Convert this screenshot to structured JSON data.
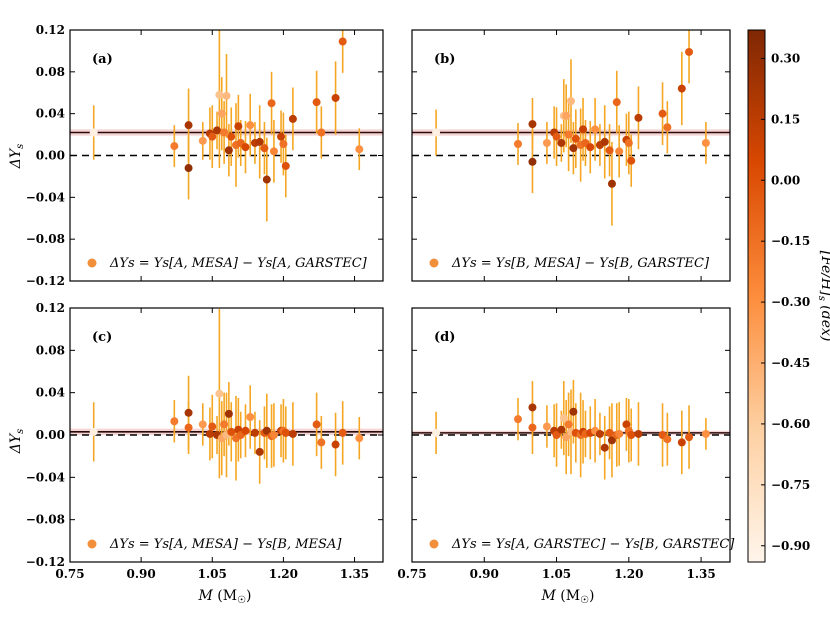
{
  "chart_data": {
    "type": "scatter",
    "x_ticks": [
      0.75,
      0.9,
      1.05,
      1.2,
      1.35
    ],
    "x_tick_labels": [
      "0.75",
      "0.90",
      "1.05",
      "1.20",
      "1.35"
    ],
    "y_ticks": [
      -0.12,
      -0.08,
      -0.04,
      0.0,
      0.04,
      0.08,
      0.12
    ],
    "y_tick_labels": [
      "−0.12",
      "−0.08",
      "−0.04",
      "0.00",
      "0.04",
      "0.08",
      "0.12"
    ],
    "xlim": [
      0.75,
      1.41
    ],
    "ylim": [
      -0.12,
      0.12
    ],
    "xlabel": "M (M☉)",
    "ylabel": "ΔYs",
    "colorbar": {
      "label": "[Fe/H]s (dex)",
      "range": [
        -0.94,
        0.37
      ],
      "ticks": [
        0.3,
        0.15,
        0.0,
        -0.15,
        -0.3,
        -0.45,
        -0.6,
        -0.75,
        -0.9
      ],
      "tick_labels": [
        "0.30",
        "0.15",
        "0.00",
        "−0.15",
        "−0.30",
        "−0.45",
        "−0.60",
        "−0.75",
        "−0.90"
      ],
      "colors": [
        "#fff5eb",
        "#fdd0a2",
        "#fd8d3c",
        "#d94801",
        "#7f2704"
      ]
    },
    "panels": [
      {
        "label": "(a)",
        "legend": "ΔYs = Ys[A, MESA] − Ys[A, GARSTEC]",
        "mean": 0.022,
        "band": 0.003,
        "line_color": "#2a0a0a",
        "points": [
          {
            "x": 0.8,
            "y": 0.022,
            "err": 0.026,
            "feh": -0.9
          },
          {
            "x": 0.97,
            "y": 0.009,
            "err": 0.02,
            "feh": -0.2
          },
          {
            "x": 1.0,
            "y": 0.029,
            "err": 0.035,
            "feh": 0.22
          },
          {
            "x": 1.0,
            "y": -0.012,
            "err": 0.03,
            "feh": 0.3
          },
          {
            "x": 1.03,
            "y": 0.014,
            "err": 0.018,
            "feh": -0.35
          },
          {
            "x": 1.045,
            "y": 0.021,
            "err": 0.025,
            "feh": 0.15
          },
          {
            "x": 1.05,
            "y": 0.018,
            "err": 0.03,
            "feh": -0.05
          },
          {
            "x": 1.06,
            "y": 0.024,
            "err": 0.018,
            "feh": 0.2
          },
          {
            "x": 1.065,
            "y": 0.058,
            "err": 0.07,
            "feh": -0.55
          },
          {
            "x": 1.07,
            "y": 0.04,
            "err": 0.035,
            "feh": -0.4
          },
          {
            "x": 1.075,
            "y": 0.022,
            "err": 0.03,
            "feh": -0.2
          },
          {
            "x": 1.08,
            "y": 0.057,
            "err": 0.04,
            "feh": -0.5
          },
          {
            "x": 1.085,
            "y": 0.005,
            "err": 0.025,
            "feh": 0.25
          },
          {
            "x": 1.09,
            "y": 0.018,
            "err": 0.028,
            "feh": 0.0
          },
          {
            "x": 1.1,
            "y": 0.01,
            "err": 0.04,
            "feh": -0.15
          },
          {
            "x": 1.105,
            "y": 0.028,
            "err": 0.03,
            "feh": 0.1
          },
          {
            "x": 1.11,
            "y": 0.012,
            "err": 0.022,
            "feh": -0.1
          },
          {
            "x": 1.12,
            "y": 0.008,
            "err": 0.025,
            "feh": 0.05
          },
          {
            "x": 1.13,
            "y": 0.029,
            "err": 0.03,
            "feh": -0.3
          },
          {
            "x": 1.14,
            "y": 0.012,
            "err": 0.02,
            "feh": 0.15
          },
          {
            "x": 1.15,
            "y": 0.013,
            "err": 0.035,
            "feh": 0.2
          },
          {
            "x": 1.16,
            "y": 0.007,
            "err": 0.025,
            "feh": -0.05
          },
          {
            "x": 1.165,
            "y": -0.023,
            "err": 0.04,
            "feh": 0.25
          },
          {
            "x": 1.175,
            "y": 0.05,
            "err": 0.03,
            "feh": -0.1
          },
          {
            "x": 1.18,
            "y": 0.004,
            "err": 0.03,
            "feh": -0.25
          },
          {
            "x": 1.195,
            "y": 0.018,
            "err": 0.025,
            "feh": 0.1
          },
          {
            "x": 1.2,
            "y": 0.011,
            "err": 0.03,
            "feh": -0.15
          },
          {
            "x": 1.205,
            "y": -0.01,
            "err": 0.03,
            "feh": 0.0
          },
          {
            "x": 1.22,
            "y": 0.035,
            "err": 0.03,
            "feh": 0.15
          },
          {
            "x": 1.27,
            "y": 0.051,
            "err": 0.03,
            "feh": -0.05
          },
          {
            "x": 1.28,
            "y": 0.022,
            "err": 0.025,
            "feh": -0.15
          },
          {
            "x": 1.31,
            "y": 0.055,
            "err": 0.035,
            "feh": 0.1
          },
          {
            "x": 1.325,
            "y": 0.109,
            "err": 0.03,
            "feh": -0.05
          },
          {
            "x": 1.36,
            "y": 0.006,
            "err": 0.02,
            "feh": -0.3
          }
        ]
      },
      {
        "label": "(b)",
        "legend": "ΔYs = Ys[B, MESA] − Ys[B, GARSTEC]",
        "mean": 0.022,
        "band": 0.003,
        "line_color": "#2a0a0a",
        "points": [
          {
            "x": 0.8,
            "y": 0.022,
            "err": 0.022,
            "feh": -0.9
          },
          {
            "x": 0.97,
            "y": 0.011,
            "err": 0.02,
            "feh": -0.2
          },
          {
            "x": 1.0,
            "y": 0.03,
            "err": 0.025,
            "feh": 0.22
          },
          {
            "x": 1.0,
            "y": -0.006,
            "err": 0.03,
            "feh": 0.3
          },
          {
            "x": 1.03,
            "y": 0.012,
            "err": 0.02,
            "feh": -0.35
          },
          {
            "x": 1.045,
            "y": 0.022,
            "err": 0.025,
            "feh": 0.15
          },
          {
            "x": 1.05,
            "y": 0.018,
            "err": 0.028,
            "feh": -0.05
          },
          {
            "x": 1.06,
            "y": 0.012,
            "err": 0.018,
            "feh": 0.2
          },
          {
            "x": 1.065,
            "y": 0.038,
            "err": 0.035,
            "feh": -0.55
          },
          {
            "x": 1.07,
            "y": 0.038,
            "err": 0.03,
            "feh": -0.4
          },
          {
            "x": 1.075,
            "y": 0.02,
            "err": 0.035,
            "feh": -0.2
          },
          {
            "x": 1.08,
            "y": 0.052,
            "err": 0.04,
            "feh": -0.5
          },
          {
            "x": 1.085,
            "y": 0.007,
            "err": 0.025,
            "feh": 0.25
          },
          {
            "x": 1.09,
            "y": 0.016,
            "err": 0.028,
            "feh": 0.0
          },
          {
            "x": 1.1,
            "y": 0.01,
            "err": 0.035,
            "feh": -0.15
          },
          {
            "x": 1.105,
            "y": 0.025,
            "err": 0.03,
            "feh": 0.1
          },
          {
            "x": 1.11,
            "y": 0.012,
            "err": 0.022,
            "feh": -0.1
          },
          {
            "x": 1.12,
            "y": 0.008,
            "err": 0.025,
            "feh": 0.05
          },
          {
            "x": 1.13,
            "y": 0.025,
            "err": 0.03,
            "feh": -0.3
          },
          {
            "x": 1.14,
            "y": 0.01,
            "err": 0.02,
            "feh": 0.15
          },
          {
            "x": 1.15,
            "y": 0.013,
            "err": 0.035,
            "feh": 0.2
          },
          {
            "x": 1.16,
            "y": 0.005,
            "err": 0.025,
            "feh": -0.05
          },
          {
            "x": 1.165,
            "y": -0.027,
            "err": 0.04,
            "feh": 0.25
          },
          {
            "x": 1.175,
            "y": 0.051,
            "err": 0.03,
            "feh": -0.1
          },
          {
            "x": 1.18,
            "y": 0.004,
            "err": 0.025,
            "feh": -0.25
          },
          {
            "x": 1.195,
            "y": 0.015,
            "err": 0.025,
            "feh": 0.1
          },
          {
            "x": 1.2,
            "y": 0.012,
            "err": 0.03,
            "feh": -0.15
          },
          {
            "x": 1.205,
            "y": -0.005,
            "err": 0.025,
            "feh": 0.0
          },
          {
            "x": 1.22,
            "y": 0.036,
            "err": 0.03,
            "feh": 0.15
          },
          {
            "x": 1.27,
            "y": 0.04,
            "err": 0.03,
            "feh": -0.05
          },
          {
            "x": 1.28,
            "y": 0.027,
            "err": 0.025,
            "feh": -0.15
          },
          {
            "x": 1.31,
            "y": 0.064,
            "err": 0.035,
            "feh": 0.1
          },
          {
            "x": 1.325,
            "y": 0.099,
            "err": 0.03,
            "feh": -0.05
          },
          {
            "x": 1.36,
            "y": 0.012,
            "err": 0.02,
            "feh": -0.3
          }
        ]
      },
      {
        "label": "(c)",
        "legend": "ΔYs = Ys[A, MESA] − Ys[B, MESA]",
        "mean": 0.003,
        "band": 0.003,
        "line_color": "#2a0a0a",
        "points": [
          {
            "x": 0.8,
            "y": 0.003,
            "err": 0.028,
            "feh": -0.9
          },
          {
            "x": 0.97,
            "y": 0.013,
            "err": 0.02,
            "feh": -0.2
          },
          {
            "x": 1.0,
            "y": 0.021,
            "err": 0.035,
            "feh": 0.22
          },
          {
            "x": 1.0,
            "y": 0.007,
            "err": 0.025,
            "feh": -0.1
          },
          {
            "x": 1.03,
            "y": 0.01,
            "err": 0.02,
            "feh": -0.35
          },
          {
            "x": 1.045,
            "y": 0.001,
            "err": 0.025,
            "feh": 0.15
          },
          {
            "x": 1.05,
            "y": 0.008,
            "err": 0.03,
            "feh": -0.05
          },
          {
            "x": 1.06,
            "y": 0.0,
            "err": 0.018,
            "feh": 0.2
          },
          {
            "x": 1.065,
            "y": 0.039,
            "err": 0.08,
            "feh": -0.55
          },
          {
            "x": 1.07,
            "y": -0.003,
            "err": 0.035,
            "feh": -0.4
          },
          {
            "x": 1.075,
            "y": 0.01,
            "err": 0.03,
            "feh": -0.2
          },
          {
            "x": 1.08,
            "y": 0.0,
            "err": 0.04,
            "feh": -0.5
          },
          {
            "x": 1.085,
            "y": 0.02,
            "err": 0.03,
            "feh": 0.25
          },
          {
            "x": 1.09,
            "y": 0.003,
            "err": 0.028,
            "feh": 0.0
          },
          {
            "x": 1.1,
            "y": -0.003,
            "err": 0.04,
            "feh": -0.15
          },
          {
            "x": 1.105,
            "y": 0.005,
            "err": 0.03,
            "feh": 0.1
          },
          {
            "x": 1.11,
            "y": 0.0,
            "err": 0.022,
            "feh": -0.1
          },
          {
            "x": 1.12,
            "y": 0.004,
            "err": 0.025,
            "feh": 0.05
          },
          {
            "x": 1.13,
            "y": 0.017,
            "err": 0.03,
            "feh": -0.3
          },
          {
            "x": 1.14,
            "y": 0.002,
            "err": 0.02,
            "feh": 0.15
          },
          {
            "x": 1.15,
            "y": -0.016,
            "err": 0.03,
            "feh": 0.2
          },
          {
            "x": 1.16,
            "y": 0.002,
            "err": 0.025,
            "feh": -0.05
          },
          {
            "x": 1.165,
            "y": 0.004,
            "err": 0.035,
            "feh": 0.25
          },
          {
            "x": 1.175,
            "y": -0.001,
            "err": 0.03,
            "feh": -0.1
          },
          {
            "x": 1.18,
            "y": 0.0,
            "err": 0.03,
            "feh": -0.25
          },
          {
            "x": 1.195,
            "y": 0.004,
            "err": 0.025,
            "feh": 0.1
          },
          {
            "x": 1.2,
            "y": 0.004,
            "err": 0.03,
            "feh": -0.15
          },
          {
            "x": 1.205,
            "y": 0.002,
            "err": 0.025,
            "feh": 0.0
          },
          {
            "x": 1.22,
            "y": 0.001,
            "err": 0.03,
            "feh": 0.15
          },
          {
            "x": 1.27,
            "y": 0.01,
            "err": 0.03,
            "feh": -0.05
          },
          {
            "x": 1.28,
            "y": -0.007,
            "err": 0.025,
            "feh": -0.15
          },
          {
            "x": 1.31,
            "y": -0.009,
            "err": 0.03,
            "feh": 0.1
          },
          {
            "x": 1.325,
            "y": 0.002,
            "err": 0.03,
            "feh": -0.05
          },
          {
            "x": 1.36,
            "y": -0.003,
            "err": 0.02,
            "feh": -0.3
          }
        ]
      },
      {
        "label": "(d)",
        "legend": "ΔYs = Ys[A, GARSTEC] − Ys[B, GARSTEC]",
        "mean": 0.002,
        "band": 0.002,
        "line_color": "#2a0a0a",
        "points": [
          {
            "x": 0.8,
            "y": 0.002,
            "err": 0.02,
            "feh": -0.9
          },
          {
            "x": 0.97,
            "y": 0.015,
            "err": 0.02,
            "feh": -0.2
          },
          {
            "x": 1.0,
            "y": 0.026,
            "err": 0.025,
            "feh": 0.22
          },
          {
            "x": 1.0,
            "y": 0.007,
            "err": 0.025,
            "feh": -0.1
          },
          {
            "x": 1.03,
            "y": 0.008,
            "err": 0.02,
            "feh": -0.35
          },
          {
            "x": 1.045,
            "y": 0.004,
            "err": 0.025,
            "feh": 0.15
          },
          {
            "x": 1.05,
            "y": 0.0,
            "err": 0.03,
            "feh": -0.05
          },
          {
            "x": 1.06,
            "y": 0.005,
            "err": 0.018,
            "feh": 0.2
          },
          {
            "x": 1.065,
            "y": 0.016,
            "err": 0.035,
            "feh": -0.55
          },
          {
            "x": 1.07,
            "y": -0.002,
            "err": 0.035,
            "feh": -0.4
          },
          {
            "x": 1.075,
            "y": 0.01,
            "err": 0.03,
            "feh": -0.2
          },
          {
            "x": 1.08,
            "y": 0.003,
            "err": 0.04,
            "feh": -0.5
          },
          {
            "x": 1.085,
            "y": 0.022,
            "err": 0.03,
            "feh": 0.25
          },
          {
            "x": 1.09,
            "y": 0.002,
            "err": 0.028,
            "feh": 0.0
          },
          {
            "x": 1.1,
            "y": 0.0,
            "err": 0.04,
            "feh": -0.15
          },
          {
            "x": 1.105,
            "y": 0.003,
            "err": 0.03,
            "feh": 0.1
          },
          {
            "x": 1.11,
            "y": 0.001,
            "err": 0.022,
            "feh": -0.1
          },
          {
            "x": 1.12,
            "y": 0.002,
            "err": 0.025,
            "feh": 0.05
          },
          {
            "x": 1.13,
            "y": 0.004,
            "err": 0.03,
            "feh": -0.3
          },
          {
            "x": 1.14,
            "y": 0.001,
            "err": 0.02,
            "feh": 0.15
          },
          {
            "x": 1.15,
            "y": -0.012,
            "err": 0.03,
            "feh": 0.2
          },
          {
            "x": 1.16,
            "y": 0.002,
            "err": 0.025,
            "feh": -0.05
          },
          {
            "x": 1.165,
            "y": -0.005,
            "err": 0.035,
            "feh": 0.25
          },
          {
            "x": 1.175,
            "y": 0.0,
            "err": 0.03,
            "feh": -0.1
          },
          {
            "x": 1.18,
            "y": 0.001,
            "err": 0.03,
            "feh": -0.25
          },
          {
            "x": 1.195,
            "y": 0.01,
            "err": 0.025,
            "feh": 0.1
          },
          {
            "x": 1.2,
            "y": 0.004,
            "err": 0.03,
            "feh": -0.15
          },
          {
            "x": 1.205,
            "y": 0.0,
            "err": 0.025,
            "feh": 0.0
          },
          {
            "x": 1.22,
            "y": 0.001,
            "err": 0.03,
            "feh": 0.15
          },
          {
            "x": 1.27,
            "y": 0.0,
            "err": 0.03,
            "feh": -0.05
          },
          {
            "x": 1.28,
            "y": -0.004,
            "err": 0.025,
            "feh": -0.15
          },
          {
            "x": 1.31,
            "y": -0.007,
            "err": 0.03,
            "feh": 0.1
          },
          {
            "x": 1.325,
            "y": -0.002,
            "err": 0.03,
            "feh": -0.05
          },
          {
            "x": 1.36,
            "y": 0.001,
            "err": 0.015,
            "feh": -0.3
          }
        ]
      }
    ]
  }
}
